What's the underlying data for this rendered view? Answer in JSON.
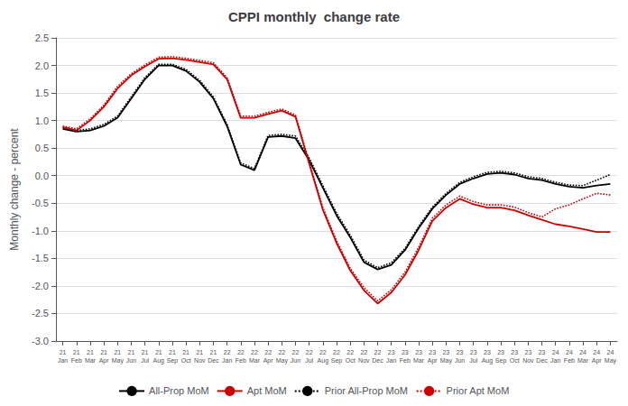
{
  "chart_data": {
    "type": "line",
    "title": "CPPI monthly  change rate",
    "ylabel": "Monthly change - percent",
    "categories": [
      "21\nJan",
      "21\nFeb",
      "21\nMar",
      "21\nApr",
      "21\nMay",
      "21\nJun",
      "21\nJul",
      "21\nAug",
      "21\nSep",
      "21\nOct",
      "21\nNov",
      "21\nDec",
      "22\nJan",
      "22\nFeb",
      "22\nMar",
      "22\nApr",
      "22\nMay",
      "22\nJun",
      "22\nJul",
      "22\nAug",
      "22\nSep",
      "22\nOct",
      "22\nNov",
      "22\nDec",
      "23\nJan",
      "23\nFeb",
      "23\nMar",
      "23\nApr",
      "23\nMay",
      "23\nJun",
      "23\nJul",
      "23\nAug",
      "23\nSep",
      "23\nOct",
      "23\nNov",
      "23\nDec",
      "24\nJan",
      "24\nFeb",
      "24\nMar",
      "24\nApr",
      "24\nMay"
    ],
    "series": [
      {
        "name": "All-Prop MoM",
        "color": "#000000",
        "line_style": "solid",
        "values": [
          0.85,
          0.8,
          0.82,
          0.9,
          1.05,
          1.4,
          1.75,
          2.0,
          2.0,
          1.9,
          1.7,
          1.4,
          0.9,
          0.2,
          0.1,
          0.7,
          0.72,
          0.68,
          0.28,
          -0.22,
          -0.72,
          -1.12,
          -1.57,
          -1.7,
          -1.62,
          -1.35,
          -0.95,
          -0.6,
          -0.35,
          -0.15,
          -0.05,
          0.03,
          0.05,
          0.02,
          -0.05,
          -0.08,
          -0.15,
          -0.2,
          -0.22,
          -0.18,
          -0.15
        ]
      },
      {
        "name": "Apt MoM",
        "color": "#cc0000",
        "line_style": "solid",
        "values": [
          0.88,
          0.82,
          1.0,
          1.25,
          1.58,
          1.82,
          1.98,
          2.12,
          2.13,
          2.1,
          2.06,
          2.02,
          1.75,
          1.05,
          1.05,
          1.12,
          1.18,
          1.07,
          0.22,
          -0.62,
          -1.22,
          -1.72,
          -2.08,
          -2.32,
          -2.12,
          -1.8,
          -1.35,
          -0.82,
          -0.58,
          -0.42,
          -0.52,
          -0.58,
          -0.58,
          -0.63,
          -0.72,
          -0.8,
          -0.88,
          -0.92,
          -0.97,
          -1.02,
          -1.02
        ]
      },
      {
        "name": "Prior All-Prop MoM",
        "color": "#000000",
        "line_style": "dotted",
        "values": [
          0.87,
          0.82,
          0.85,
          0.93,
          1.08,
          1.43,
          1.78,
          2.02,
          2.02,
          1.93,
          1.73,
          1.43,
          0.93,
          0.23,
          0.13,
          0.73,
          0.75,
          0.72,
          0.32,
          -0.18,
          -0.68,
          -1.08,
          -1.53,
          -1.67,
          -1.58,
          -1.32,
          -0.92,
          -0.57,
          -0.32,
          -0.12,
          -0.02,
          0.06,
          0.08,
          0.05,
          -0.02,
          -0.05,
          -0.12,
          -0.17,
          -0.18,
          -0.08,
          0.02
        ]
      },
      {
        "name": "Prior Apt MoM",
        "color": "#cc0000",
        "line_style": "dotted",
        "values": [
          0.9,
          0.85,
          1.03,
          1.28,
          1.62,
          1.85,
          2.01,
          2.15,
          2.16,
          2.13,
          2.09,
          2.05,
          1.78,
          1.08,
          1.08,
          1.15,
          1.21,
          1.1,
          0.25,
          -0.58,
          -1.18,
          -1.68,
          -2.03,
          -2.27,
          -2.07,
          -1.75,
          -1.3,
          -0.77,
          -0.53,
          -0.37,
          -0.47,
          -0.53,
          -0.53,
          -0.57,
          -0.67,
          -0.75,
          -0.6,
          -0.53,
          -0.42,
          -0.32,
          -0.35
        ]
      }
    ],
    "ylim": [
      -3.0,
      2.5
    ],
    "yticks": [
      {
        "value": -3.0,
        "label": "-3.0"
      },
      -2.5,
      {
        "value": -2.0,
        "label": "-2.0"
      },
      -1.5,
      {
        "value": -1.0,
        "label": "-1.0"
      },
      -0.5,
      {
        "value": 0.0,
        "label": "0.0"
      },
      0.5,
      {
        "value": 1.0,
        "label": "1.0"
      },
      1.5,
      {
        "value": 2.0,
        "label": "2.0"
      },
      2.5
    ],
    "grid": true,
    "legend": "bottom"
  }
}
